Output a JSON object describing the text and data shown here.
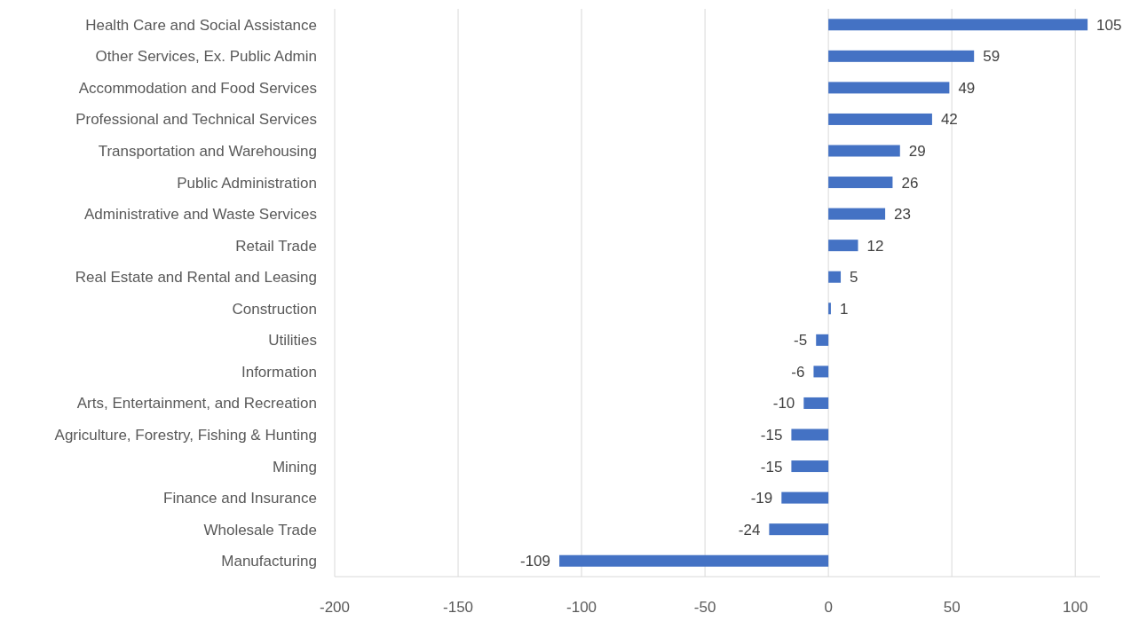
{
  "chart_data": {
    "type": "bar",
    "orientation": "horizontal",
    "categories": [
      "Health Care and Social Assistance",
      "Other Services, Ex. Public Admin",
      "Accommodation and Food Services",
      "Professional and Technical Services",
      "Transportation and Warehousing",
      "Public Administration",
      "Administrative and Waste Services",
      "Retail Trade",
      "Real Estate and Rental and Leasing",
      "Construction",
      "Utilities",
      "Information",
      "Arts, Entertainment, and Recreation",
      "Agriculture, Forestry, Fishing & Hunting",
      "Mining",
      "Finance and Insurance",
      "Wholesale Trade",
      "Manufacturing"
    ],
    "values": [
      105,
      59,
      49,
      42,
      29,
      26,
      23,
      12,
      5,
      1,
      -5,
      -6,
      -10,
      -15,
      -15,
      -19,
      -24,
      -109
    ],
    "color": "#4472c4",
    "xlim": [
      -200,
      110
    ],
    "xticks": [
      -200,
      -150,
      -100,
      -50,
      0,
      50,
      100
    ],
    "grid": "x",
    "data_labels": true
  }
}
